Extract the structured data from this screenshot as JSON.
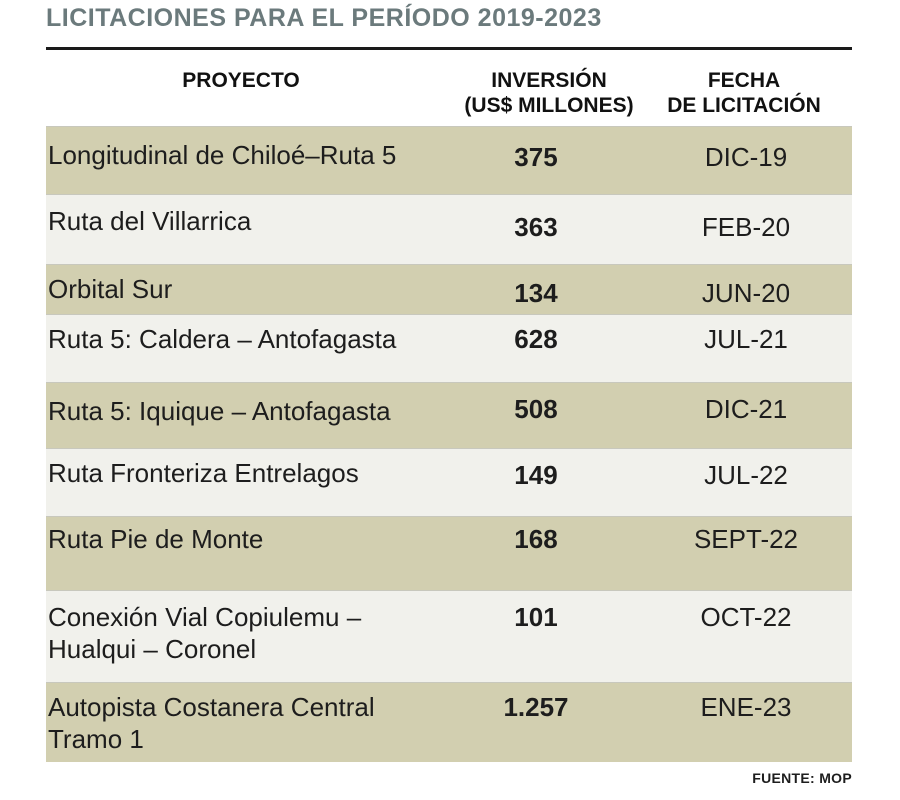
{
  "title": "LICITACIONES PARA EL PERÍODO 2019-2023",
  "headers": {
    "project": "PROYECTO",
    "investment_line1": "INVERSIÓN",
    "investment_line2": "(US$ MILLONES)",
    "date_line1": "FECHA",
    "date_line2": "DE LICITACIÓN"
  },
  "rows": [
    {
      "project_line1": "Longitudinal de Chiloé–Ruta 5",
      "project_line2": "",
      "investment": "375",
      "date": "DIC-19"
    },
    {
      "project_line1": "Ruta del Villarrica",
      "project_line2": "",
      "investment": "363",
      "date": "FEB-20"
    },
    {
      "project_line1": "Orbital Sur",
      "project_line2": "",
      "investment": "134",
      "date": "JUN-20"
    },
    {
      "project_line1": "Ruta 5: Caldera – Antofagasta",
      "project_line2": "",
      "investment": "628",
      "date": "JUL-21"
    },
    {
      "project_line1": "Ruta 5: Iquique – Antofagasta",
      "project_line2": "",
      "investment": "508",
      "date": "DIC-21"
    },
    {
      "project_line1": "Ruta Fronteriza Entrelagos",
      "project_line2": "",
      "investment": "149",
      "date": "JUL-22"
    },
    {
      "project_line1": "Ruta Pie de Monte",
      "project_line2": "",
      "investment": "168",
      "date": "SEPT-22"
    },
    {
      "project_line1": "Conexión Vial Copiulemu –",
      "project_line2": "Hualqui – Coronel",
      "investment": "101",
      "date": "OCT-22"
    },
    {
      "project_line1": "Autopista Costanera Central",
      "project_line2": "Tramo 1",
      "investment": "1.257",
      "date": "ENE-23"
    }
  ],
  "source": "FUENTE: MOP",
  "colors": {
    "title": "#6b7a7c",
    "row_dark": "#d2cfb0",
    "row_light": "#f1f1ec"
  }
}
